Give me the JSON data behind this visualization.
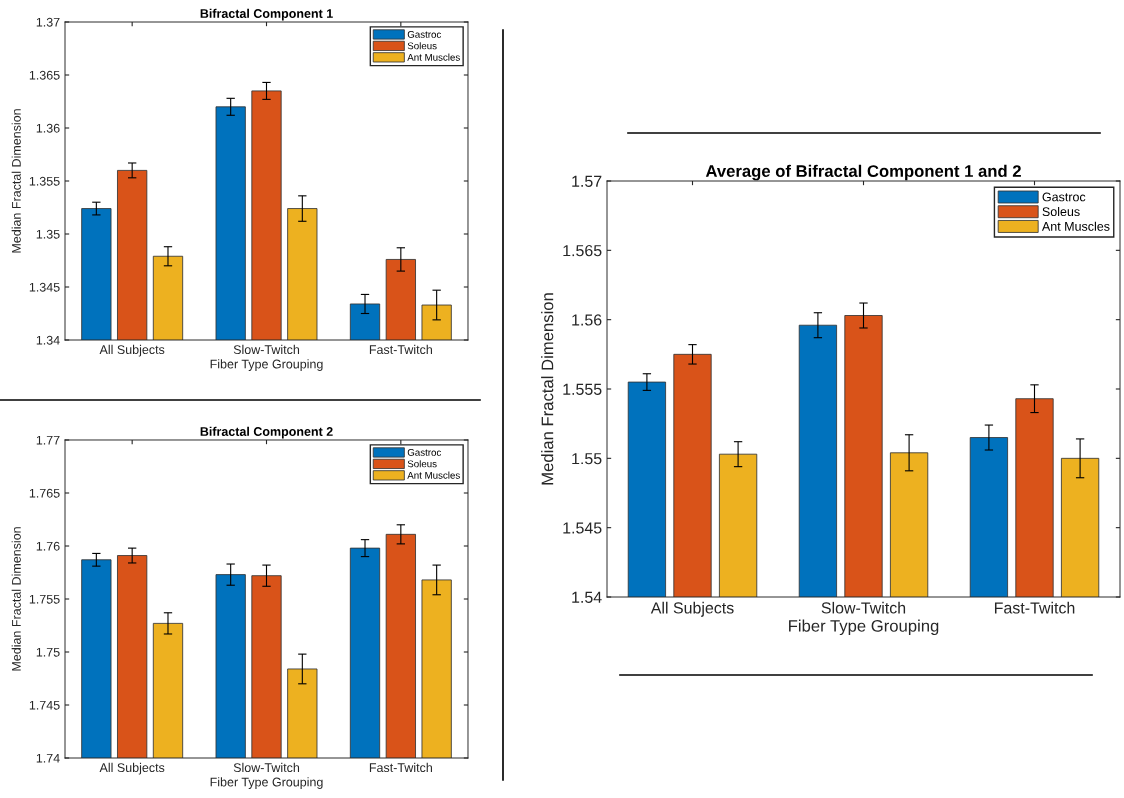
{
  "chart_data": [
    {
      "type": "bar",
      "title": "Bifractal Component 1",
      "xlabel": "Fiber Type Grouping",
      "ylabel": "Median Fractal Dimension",
      "categories": [
        "All Subjects",
        "Slow-Twitch",
        "Fast-Twitch"
      ],
      "ylim": [
        1.34,
        1.37
      ],
      "yticks": [
        1.34,
        1.345,
        1.35,
        1.355,
        1.36,
        1.365,
        1.37
      ],
      "legend": "top right",
      "grid": false,
      "series": [
        {
          "name": "Gastroc",
          "color": "#0072bd",
          "values": [
            1.3524,
            1.362,
            1.3434
          ],
          "errors": [
            0.0006,
            0.0008,
            0.0009
          ]
        },
        {
          "name": "Soleus",
          "color": "#d95319",
          "values": [
            1.356,
            1.3635,
            1.3476
          ],
          "errors": [
            0.0007,
            0.0008,
            0.0011
          ]
        },
        {
          "name": "Ant Muscles",
          "color": "#edb120",
          "values": [
            1.3479,
            1.3524,
            1.3433
          ],
          "errors": [
            0.0009,
            0.0012,
            0.0014
          ]
        }
      ]
    },
    {
      "type": "bar",
      "title": "Bifractal Component 2",
      "xlabel": "Fiber Type Grouping",
      "ylabel": "Median Fractal Dimension",
      "categories": [
        "All Subjects",
        "Slow-Twitch",
        "Fast-Twitch"
      ],
      "ylim": [
        1.74,
        1.77
      ],
      "yticks": [
        1.74,
        1.745,
        1.75,
        1.755,
        1.76,
        1.765,
        1.77
      ],
      "legend": "top right",
      "grid": false,
      "series": [
        {
          "name": "Gastroc",
          "color": "#0072bd",
          "values": [
            1.7587,
            1.7573,
            1.7598
          ],
          "errors": [
            0.0006,
            0.001,
            0.0008
          ]
        },
        {
          "name": "Soleus",
          "color": "#d95319",
          "values": [
            1.7591,
            1.7572,
            1.7611
          ],
          "errors": [
            0.0007,
            0.001,
            0.0009
          ]
        },
        {
          "name": "Ant Muscles",
          "color": "#edb120",
          "values": [
            1.7527,
            1.7484,
            1.7568
          ],
          "errors": [
            0.001,
            0.0014,
            0.0014
          ]
        }
      ]
    },
    {
      "type": "bar",
      "title": "Average of Bifractal Component 1 and 2",
      "xlabel": "Fiber Type Grouping",
      "ylabel": "Median Fractal Dimension",
      "categories": [
        "All Subjects",
        "Slow-Twitch",
        "Fast-Twitch"
      ],
      "ylim": [
        1.54,
        1.57
      ],
      "yticks": [
        1.54,
        1.545,
        1.55,
        1.555,
        1.56,
        1.565,
        1.57
      ],
      "legend": "top right",
      "grid": false,
      "series": [
        {
          "name": "Gastroc",
          "color": "#0072bd",
          "values": [
            1.5555,
            1.5596,
            1.5515
          ],
          "errors": [
            0.0006,
            0.0009,
            0.0009
          ]
        },
        {
          "name": "Soleus",
          "color": "#d95319",
          "values": [
            1.5575,
            1.5603,
            1.5543
          ],
          "errors": [
            0.0007,
            0.0009,
            0.001
          ]
        },
        {
          "name": "Ant Muscles",
          "color": "#edb120",
          "values": [
            1.5503,
            1.5504,
            1.55
          ],
          "errors": [
            0.0009,
            0.0013,
            0.0014
          ]
        }
      ]
    }
  ]
}
